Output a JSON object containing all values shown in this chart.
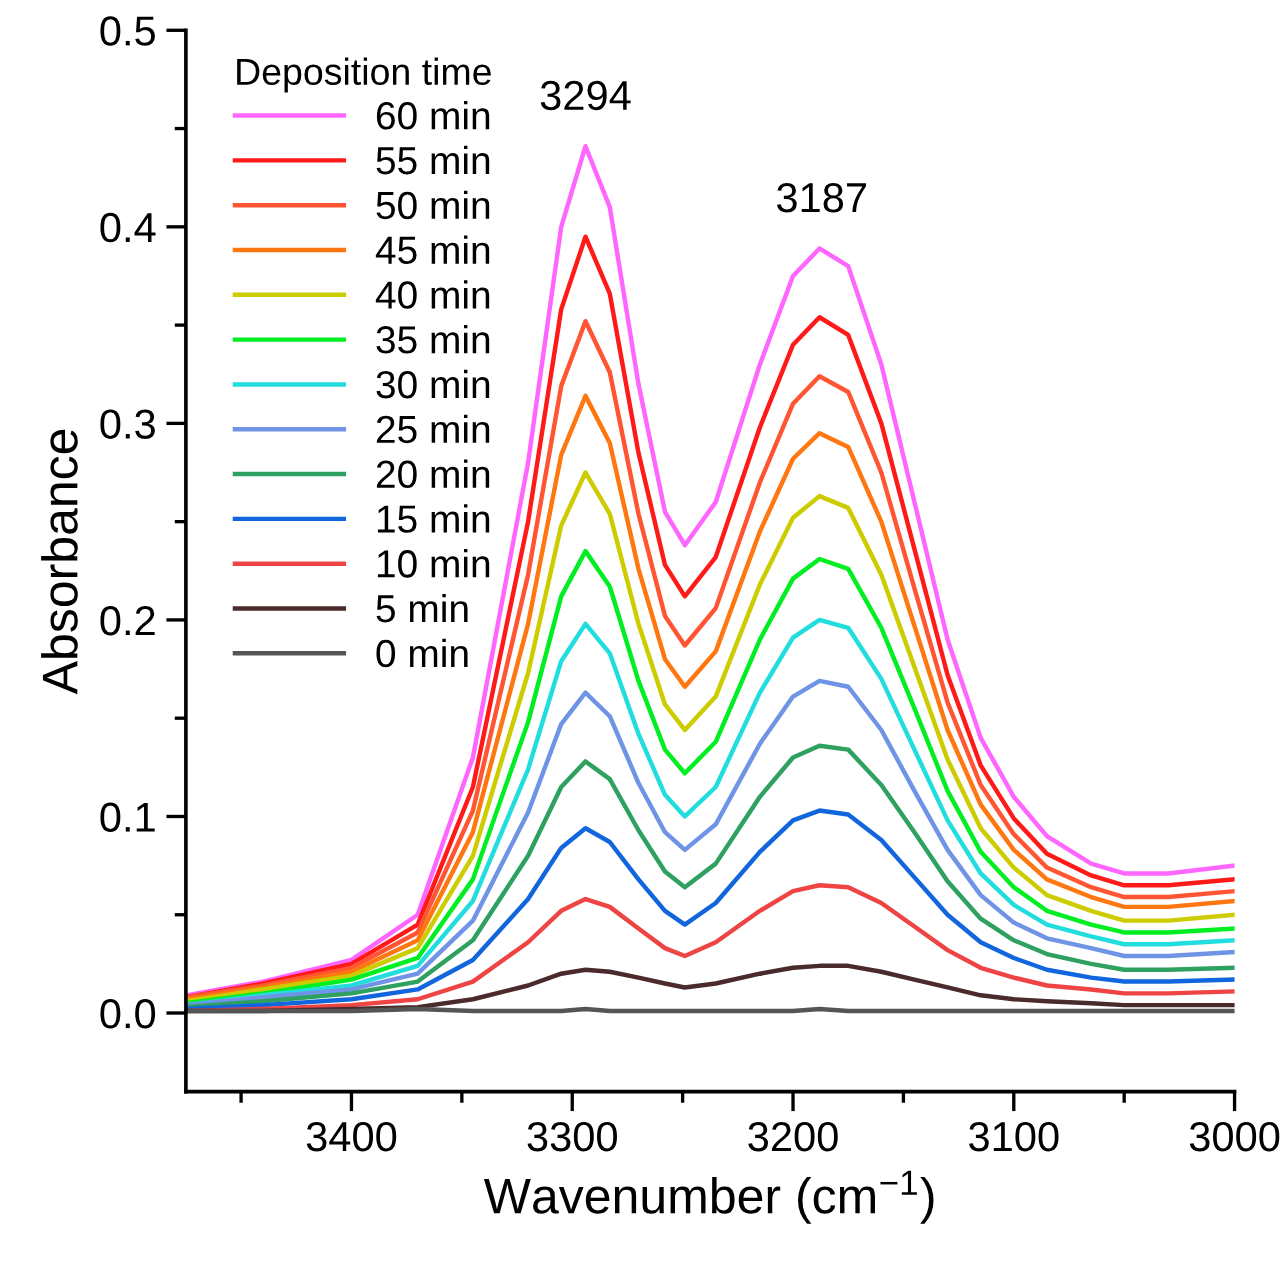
{
  "chart_data": {
    "type": "line",
    "xlabel": "Wavenumber (cm$^{−1}$)",
    "ylabel": "Absorbance",
    "legend_title": "Deposition time",
    "legend": "top left",
    "grid": false,
    "marker": "none",
    "line_style": "solid",
    "xlim": [
      3475,
      3000
    ],
    "ylim": [
      -0.04,
      0.5
    ],
    "xticks": [
      {
        "value": 3450,
        "label": null
      },
      3400,
      {
        "value": 3350,
        "label": null
      },
      3300,
      {
        "value": 3250,
        "label": null
      },
      3200,
      {
        "value": 3150,
        "label": null
      },
      3100,
      {
        "value": 3050,
        "label": null
      },
      3000
    ],
    "yticks": [
      {
        "value": 0.0,
        "label": "0.0"
      },
      {
        "value": 0.05,
        "label": null
      },
      {
        "value": 0.1,
        "label": "0.1"
      },
      {
        "value": 0.15,
        "label": null
      },
      {
        "value": 0.2,
        "label": "0.2"
      },
      {
        "value": 0.25,
        "label": null
      },
      {
        "value": 0.3,
        "label": "0.3"
      },
      {
        "value": 0.35,
        "label": null
      },
      {
        "value": 0.4,
        "label": "0.4"
      },
      {
        "value": 0.45,
        "label": null
      },
      {
        "value": 0.5,
        "label": "0.5"
      }
    ],
    "x": [
      3475,
      3440,
      3400,
      3370,
      3345,
      3320,
      3305,
      3294,
      3283,
      3270,
      3258,
      3249,
      3235,
      3215,
      3200,
      3188,
      3175,
      3160,
      3145,
      3130,
      3115,
      3100,
      3085,
      3065,
      3050,
      3030,
      3000
    ],
    "annotations": [
      {
        "text": "3294",
        "x": 3294,
        "y": 0.441
      },
      {
        "text": "3187",
        "x": 3187,
        "y": 0.389
      }
    ],
    "series": [
      {
        "name": "60 min",
        "color": "#ff66ff",
        "values": [
          0.009,
          0.016,
          0.027,
          0.05,
          0.13,
          0.28,
          0.4,
          0.441,
          0.41,
          0.32,
          0.255,
          0.238,
          0.26,
          0.33,
          0.375,
          0.389,
          0.38,
          0.33,
          0.26,
          0.19,
          0.14,
          0.11,
          0.09,
          0.076,
          0.071,
          0.071,
          0.075
        ]
      },
      {
        "name": "55 min",
        "color": "#ff1a1a",
        "values": [
          0.008,
          0.015,
          0.025,
          0.045,
          0.115,
          0.25,
          0.358,
          0.395,
          0.366,
          0.285,
          0.228,
          0.212,
          0.232,
          0.298,
          0.34,
          0.354,
          0.345,
          0.3,
          0.236,
          0.172,
          0.126,
          0.099,
          0.081,
          0.07,
          0.065,
          0.065,
          0.068
        ]
      },
      {
        "name": "50 min",
        "color": "#ff5533",
        "values": [
          0.008,
          0.014,
          0.023,
          0.041,
          0.103,
          0.223,
          0.319,
          0.352,
          0.326,
          0.254,
          0.202,
          0.187,
          0.206,
          0.27,
          0.31,
          0.324,
          0.316,
          0.275,
          0.216,
          0.158,
          0.116,
          0.091,
          0.074,
          0.064,
          0.059,
          0.059,
          0.062
        ]
      },
      {
        "name": "45 min",
        "color": "#ff7711",
        "values": [
          0.007,
          0.013,
          0.021,
          0.037,
          0.092,
          0.198,
          0.284,
          0.314,
          0.29,
          0.226,
          0.18,
          0.166,
          0.184,
          0.245,
          0.282,
          0.295,
          0.288,
          0.25,
          0.197,
          0.144,
          0.106,
          0.083,
          0.068,
          0.059,
          0.054,
          0.054,
          0.057
        ]
      },
      {
        "name": "40 min",
        "color": "#cccc00",
        "values": [
          0.006,
          0.012,
          0.019,
          0.033,
          0.08,
          0.173,
          0.248,
          0.275,
          0.254,
          0.198,
          0.157,
          0.144,
          0.161,
          0.218,
          0.252,
          0.263,
          0.257,
          0.223,
          0.176,
          0.129,
          0.094,
          0.074,
          0.06,
          0.052,
          0.047,
          0.047,
          0.05
        ]
      },
      {
        "name": "35 min",
        "color": "#00ee22",
        "values": [
          0.005,
          0.01,
          0.017,
          0.028,
          0.068,
          0.148,
          0.212,
          0.235,
          0.217,
          0.169,
          0.134,
          0.122,
          0.138,
          0.19,
          0.221,
          0.231,
          0.226,
          0.196,
          0.155,
          0.113,
          0.082,
          0.064,
          0.052,
          0.045,
          0.041,
          0.041,
          0.043
        ]
      },
      {
        "name": "30 min",
        "color": "#22dddd",
        "values": [
          0.004,
          0.009,
          0.014,
          0.024,
          0.057,
          0.124,
          0.179,
          0.198,
          0.183,
          0.142,
          0.111,
          0.1,
          0.115,
          0.163,
          0.191,
          0.2,
          0.196,
          0.17,
          0.134,
          0.098,
          0.071,
          0.055,
          0.045,
          0.039,
          0.035,
          0.035,
          0.037
        ]
      },
      {
        "name": "25 min",
        "color": "#6f94e6",
        "values": [
          0.004,
          0.008,
          0.012,
          0.02,
          0.047,
          0.102,
          0.147,
          0.163,
          0.151,
          0.117,
          0.092,
          0.083,
          0.096,
          0.137,
          0.161,
          0.169,
          0.166,
          0.144,
          0.113,
          0.083,
          0.06,
          0.046,
          0.038,
          0.033,
          0.029,
          0.029,
          0.031
        ]
      },
      {
        "name": "20 min",
        "color": "#2ea060",
        "values": [
          0.003,
          0.006,
          0.01,
          0.016,
          0.037,
          0.08,
          0.115,
          0.128,
          0.119,
          0.093,
          0.072,
          0.064,
          0.076,
          0.11,
          0.13,
          0.136,
          0.134,
          0.116,
          0.092,
          0.067,
          0.048,
          0.037,
          0.03,
          0.025,
          0.022,
          0.022,
          0.023
        ]
      },
      {
        "name": "15 min",
        "color": "#1166dd",
        "values": [
          0.002,
          0.004,
          0.007,
          0.012,
          0.027,
          0.058,
          0.084,
          0.094,
          0.087,
          0.068,
          0.052,
          0.045,
          0.056,
          0.082,
          0.098,
          0.103,
          0.101,
          0.088,
          0.069,
          0.05,
          0.036,
          0.028,
          0.022,
          0.018,
          0.016,
          0.016,
          0.017
        ]
      },
      {
        "name": "10 min",
        "color": "#ee4444",
        "values": [
          0.001,
          0.002,
          0.004,
          0.007,
          0.016,
          0.036,
          0.052,
          0.058,
          0.054,
          0.043,
          0.033,
          0.029,
          0.036,
          0.052,
          0.062,
          0.065,
          0.064,
          0.056,
          0.044,
          0.032,
          0.023,
          0.018,
          0.014,
          0.012,
          0.01,
          0.01,
          0.011
        ]
      },
      {
        "name": "5 min",
        "color": "#4a2a2a",
        "values": [
          0.001,
          0.001,
          0.002,
          0.003,
          0.007,
          0.014,
          0.02,
          0.022,
          0.021,
          0.018,
          0.015,
          0.013,
          0.015,
          0.02,
          0.023,
          0.024,
          0.024,
          0.021,
          0.017,
          0.013,
          0.009,
          0.007,
          0.006,
          0.005,
          0.004,
          0.004,
          0.004
        ]
      },
      {
        "name": "0 min",
        "color": "#555555",
        "values": [
          0.001,
          0.001,
          0.001,
          0.002,
          0.001,
          0.001,
          0.001,
          0.002,
          0.001,
          0.001,
          0.001,
          0.001,
          0.001,
          0.001,
          0.001,
          0.002,
          0.001,
          0.001,
          0.001,
          0.001,
          0.001,
          0.001,
          0.001,
          0.001,
          0.001,
          0.001,
          0.001
        ]
      }
    ]
  }
}
